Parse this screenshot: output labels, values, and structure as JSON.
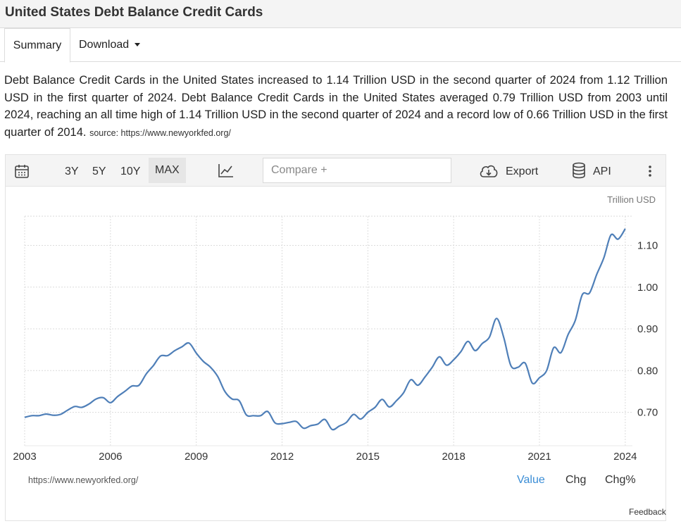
{
  "page": {
    "title": "United States Debt Balance Credit Cards"
  },
  "tabs": {
    "summary": "Summary",
    "download": "Download"
  },
  "description": {
    "text": "Debt Balance Credit Cards in the United States increased to 1.14 Trillion USD in the second quarter of 2024 from 1.12 Trillion USD in the first quarter of 2024. Debt Balance Credit Cards in the United States averaged 0.79 Trillion USD from 2003 until 2024, reaching an all time high of 1.14 Trillion USD in the second quarter of 2024 and a record low of 0.66 Trillion USD in the first quarter of 2014.",
    "source": "source: https://www.newyorkfed.org/"
  },
  "toolbar": {
    "range_3y": "3Y",
    "range_5y": "5Y",
    "range_10y": "10Y",
    "range_max": "MAX",
    "compare_placeholder": "Compare +",
    "export_label": "Export",
    "api_label": "API",
    "icons": [
      "calendar-icon",
      "line-chart-icon",
      "cloud-download-icon",
      "database-icon",
      "more-vertical-icon"
    ]
  },
  "footer": {
    "source_url": "https://www.newyorkfed.org/",
    "mode_value": "Value",
    "mode_chg": "Chg",
    "mode_chg_pct": "Chg%",
    "feedback": "Feedback"
  },
  "colors": {
    "line": "#4f7fb8",
    "accent": "#3a8dd6"
  },
  "chart_data": {
    "type": "line",
    "unit_label": "Trillion USD",
    "y_ticks": [
      "0.70",
      "0.80",
      "0.90",
      "1.00",
      "1.10"
    ],
    "x_ticks": [
      "2003",
      "2006",
      "2009",
      "2012",
      "2015",
      "2018",
      "2021",
      "2024"
    ],
    "ylim": [
      0.62,
      1.17
    ],
    "xlim": [
      2003.0,
      2024.25
    ],
    "grid": true,
    "series": [
      {
        "values": [
          [
            2003.0,
            0.688
          ],
          [
            2003.25,
            0.692
          ],
          [
            2003.5,
            0.692
          ],
          [
            2003.75,
            0.696
          ],
          [
            2004.0,
            0.693
          ],
          [
            2004.25,
            0.695
          ],
          [
            2004.5,
            0.705
          ],
          [
            2004.75,
            0.714
          ],
          [
            2005.0,
            0.712
          ],
          [
            2005.25,
            0.72
          ],
          [
            2005.5,
            0.732
          ],
          [
            2005.75,
            0.735
          ],
          [
            2006.0,
            0.723
          ],
          [
            2006.25,
            0.738
          ],
          [
            2006.5,
            0.75
          ],
          [
            2006.75,
            0.763
          ],
          [
            2007.0,
            0.765
          ],
          [
            2007.25,
            0.792
          ],
          [
            2007.5,
            0.812
          ],
          [
            2007.75,
            0.835
          ],
          [
            2008.0,
            0.836
          ],
          [
            2008.25,
            0.848
          ],
          [
            2008.5,
            0.857
          ],
          [
            2008.75,
            0.866
          ],
          [
            2009.0,
            0.842
          ],
          [
            2009.25,
            0.822
          ],
          [
            2009.5,
            0.808
          ],
          [
            2009.75,
            0.786
          ],
          [
            2010.0,
            0.75
          ],
          [
            2010.25,
            0.732
          ],
          [
            2010.5,
            0.728
          ],
          [
            2010.75,
            0.694
          ],
          [
            2011.0,
            0.692
          ],
          [
            2011.25,
            0.692
          ],
          [
            2011.5,
            0.702
          ],
          [
            2011.75,
            0.675
          ],
          [
            2012.0,
            0.673
          ],
          [
            2012.25,
            0.676
          ],
          [
            2012.5,
            0.678
          ],
          [
            2012.75,
            0.662
          ],
          [
            2013.0,
            0.668
          ],
          [
            2013.25,
            0.672
          ],
          [
            2013.5,
            0.683
          ],
          [
            2013.75,
            0.659
          ],
          [
            2014.0,
            0.667
          ],
          [
            2014.25,
            0.676
          ],
          [
            2014.5,
            0.695
          ],
          [
            2014.75,
            0.684
          ],
          [
            2015.0,
            0.7
          ],
          [
            2015.25,
            0.712
          ],
          [
            2015.5,
            0.731
          ],
          [
            2015.75,
            0.713
          ],
          [
            2016.0,
            0.728
          ],
          [
            2016.25,
            0.747
          ],
          [
            2016.5,
            0.778
          ],
          [
            2016.75,
            0.765
          ],
          [
            2017.0,
            0.785
          ],
          [
            2017.25,
            0.808
          ],
          [
            2017.5,
            0.833
          ],
          [
            2017.75,
            0.813
          ],
          [
            2018.0,
            0.826
          ],
          [
            2018.25,
            0.845
          ],
          [
            2018.5,
            0.87
          ],
          [
            2018.75,
            0.848
          ],
          [
            2019.0,
            0.865
          ],
          [
            2019.25,
            0.88
          ],
          [
            2019.5,
            0.925
          ],
          [
            2019.75,
            0.88
          ],
          [
            2020.0,
            0.812
          ],
          [
            2020.25,
            0.808
          ],
          [
            2020.5,
            0.818
          ],
          [
            2020.75,
            0.77
          ],
          [
            2021.0,
            0.783
          ],
          [
            2021.25,
            0.8
          ],
          [
            2021.5,
            0.855
          ],
          [
            2021.75,
            0.843
          ],
          [
            2022.0,
            0.886
          ],
          [
            2022.25,
            0.92
          ],
          [
            2022.5,
            0.982
          ],
          [
            2022.75,
            0.986
          ],
          [
            2023.0,
            1.03
          ],
          [
            2023.25,
            1.07
          ],
          [
            2023.5,
            1.125
          ],
          [
            2023.75,
            1.115
          ],
          [
            2024.0,
            1.14
          ]
        ]
      }
    ]
  }
}
